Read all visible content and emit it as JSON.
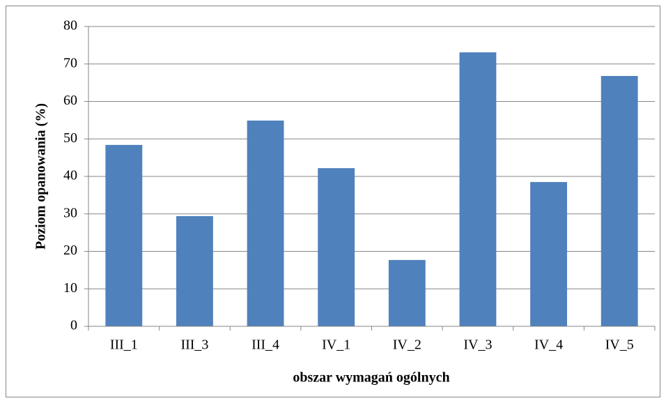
{
  "chart_data": {
    "type": "bar",
    "x_label": "obszar wymagań ogólnych",
    "y_label": "Poziom opanowania (%)",
    "categories": [
      "III_1",
      "III_3",
      "III_4",
      "IV_1",
      "IV_2",
      "IV_3",
      "IV_4",
      "IV_5"
    ],
    "values": [
      48.4,
      29.4,
      54.9,
      42.2,
      17.7,
      73.1,
      38.5,
      66.8
    ],
    "color": "#4f81bd",
    "ylim": [
      0,
      80
    ],
    "yticks": [
      0,
      10,
      20,
      30,
      40,
      50,
      60,
      70,
      80
    ],
    "grid": true
  }
}
